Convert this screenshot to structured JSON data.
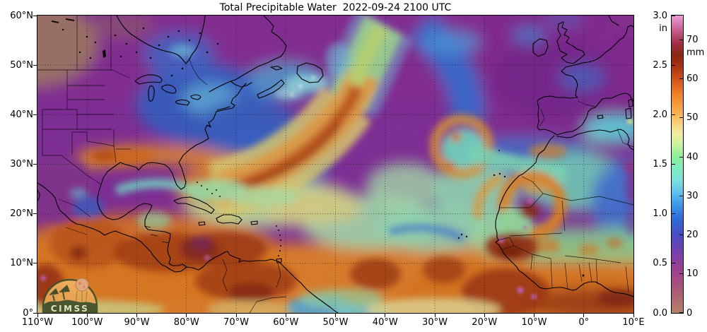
{
  "title": "Total Precipitable Water  2022-09-24 2100 UTC",
  "axes": {
    "lat_ticks": [
      "60°N",
      "50°N",
      "40°N",
      "30°N",
      "20°N",
      "10°N",
      "0°"
    ],
    "lon_ticks": [
      "110°W",
      "100°W",
      "90°W",
      "80°W",
      "70°W",
      "60°W",
      "50°W",
      "40°W",
      "30°W",
      "20°W",
      "10°W",
      "0°",
      "10°E"
    ]
  },
  "colorbar": {
    "unit_left": "in",
    "unit_right": "mm",
    "ticks_in": [
      "3.0",
      "2.5",
      "2.0",
      "1.5",
      "1.0",
      "0.5",
      "0.0"
    ],
    "ticks_mm": [
      "70",
      "60",
      "50",
      "40",
      "30",
      "20",
      "10",
      "0"
    ],
    "max_mm": 76.2,
    "stops": [
      {
        "mm": 0,
        "color": "#b5826b"
      },
      {
        "mm": 4,
        "color": "#ab6672"
      },
      {
        "mm": 8,
        "color": "#a54c80"
      },
      {
        "mm": 12,
        "color": "#963f97"
      },
      {
        "mm": 16,
        "color": "#6f42ae"
      },
      {
        "mm": 20,
        "color": "#4a4cc0"
      },
      {
        "mm": 24,
        "color": "#2f6ad8"
      },
      {
        "mm": 28,
        "color": "#3f9ae8"
      },
      {
        "mm": 31,
        "color": "#62c4ee"
      },
      {
        "mm": 34,
        "color": "#7cdfdd"
      },
      {
        "mm": 37,
        "color": "#7deec0"
      },
      {
        "mm": 40,
        "color": "#8cee9c"
      },
      {
        "mm": 43,
        "color": "#c9f29e"
      },
      {
        "mm": 46,
        "color": "#f2eda0"
      },
      {
        "mm": 49,
        "color": "#f7cd74"
      },
      {
        "mm": 52,
        "color": "#f6a94a"
      },
      {
        "mm": 56,
        "color": "#ef8128"
      },
      {
        "mm": 60,
        "color": "#cd531c"
      },
      {
        "mm": 63,
        "color": "#a93414"
      },
      {
        "mm": 66,
        "color": "#8b2613"
      },
      {
        "mm": 69,
        "color": "#9c2f44"
      },
      {
        "mm": 72,
        "color": "#c25684"
      },
      {
        "mm": 74,
        "color": "#d678ae"
      },
      {
        "mm": 76.2,
        "color": "#eb9ed6"
      }
    ]
  },
  "logo": {
    "label": "CIMSS"
  },
  "chart_data": {
    "type": "heatmap",
    "title": "Total Precipitable Water  2022-09-24 2100 UTC",
    "x_range_deg": [
      "110°W",
      "10°E"
    ],
    "y_range_deg": [
      "0°",
      "60°N"
    ],
    "grid": "dotted every 10 degrees",
    "scale_in": [
      0.0,
      3.0
    ],
    "scale_mm": [
      0,
      76.2
    ],
    "legend_position": "right-vertical-colorbar"
  }
}
